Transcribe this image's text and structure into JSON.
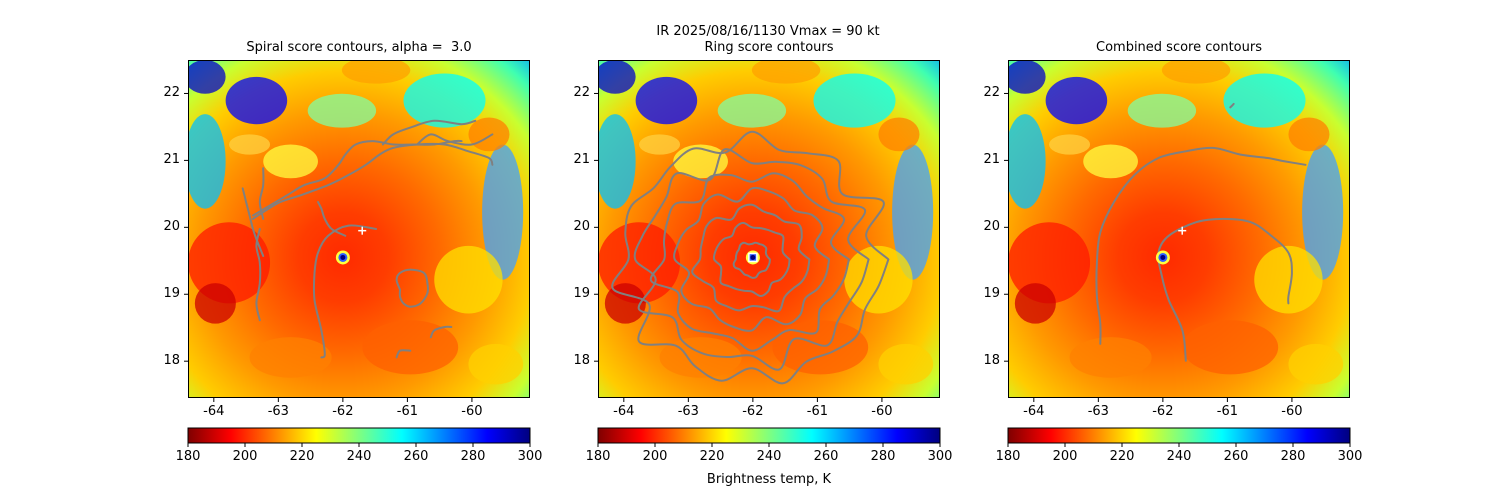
{
  "figure": {
    "suptitle_line": "IR  2025/08/16/1130    Vmax = 90 kt",
    "colorbar_label": "Brightness temp, K",
    "colormap": [
      "#7f0000",
      "#ff0000",
      "#ff7f00",
      "#ffff00",
      "#7fff7f",
      "#00ffff",
      "#007fff",
      "#0000ff",
      "#00007f"
    ],
    "contour_color": "#808080",
    "center_marker_color": "#ffffff"
  },
  "chart_data": [
    {
      "type": "heatmap",
      "title": "Spiral score contours, alpha =  3.0",
      "xlim": [
        -64.4,
        -59.1
      ],
      "ylim": [
        17.45,
        22.5
      ],
      "xticks": [
        -64,
        -63,
        -62,
        -61,
        -60
      ],
      "yticks": [
        18,
        19,
        20,
        21,
        22
      ],
      "center_marker": {
        "symbol": "+",
        "lon": -61.7,
        "lat": 19.95
      },
      "eye": {
        "lon": -62.0,
        "lat": 19.55
      },
      "colorbar": {
        "min": 180,
        "max": 300,
        "ticks": [
          180,
          200,
          220,
          240,
          260,
          280,
          300
        ]
      }
    },
    {
      "type": "heatmap",
      "title": "Ring score contours",
      "xlim": [
        -64.4,
        -59.1
      ],
      "ylim": [
        17.45,
        22.5
      ],
      "xticks": [
        -64,
        -63,
        -62,
        -61,
        -60
      ],
      "yticks": [
        18,
        19,
        20,
        21,
        22
      ],
      "center_marker": {
        "symbol": "square",
        "lon": -62.0,
        "lat": 19.55
      },
      "eye": {
        "lon": -62.0,
        "lat": 19.55
      },
      "colorbar": {
        "min": 180,
        "max": 300,
        "ticks": [
          180,
          200,
          220,
          240,
          260,
          280,
          300
        ]
      }
    },
    {
      "type": "heatmap",
      "title": "Combined score contours",
      "xlim": [
        -64.4,
        -59.1
      ],
      "ylim": [
        17.45,
        22.5
      ],
      "xticks": [
        -64,
        -63,
        -62,
        -61,
        -60
      ],
      "yticks": [
        18,
        19,
        20,
        21,
        22
      ],
      "center_marker": {
        "symbol": "+",
        "lon": -61.7,
        "lat": 19.95
      },
      "eye": {
        "lon": -62.0,
        "lat": 19.55
      },
      "colorbar": {
        "min": 180,
        "max": 300,
        "ticks": [
          180,
          200,
          220,
          240,
          260,
          280,
          300
        ]
      }
    }
  ]
}
